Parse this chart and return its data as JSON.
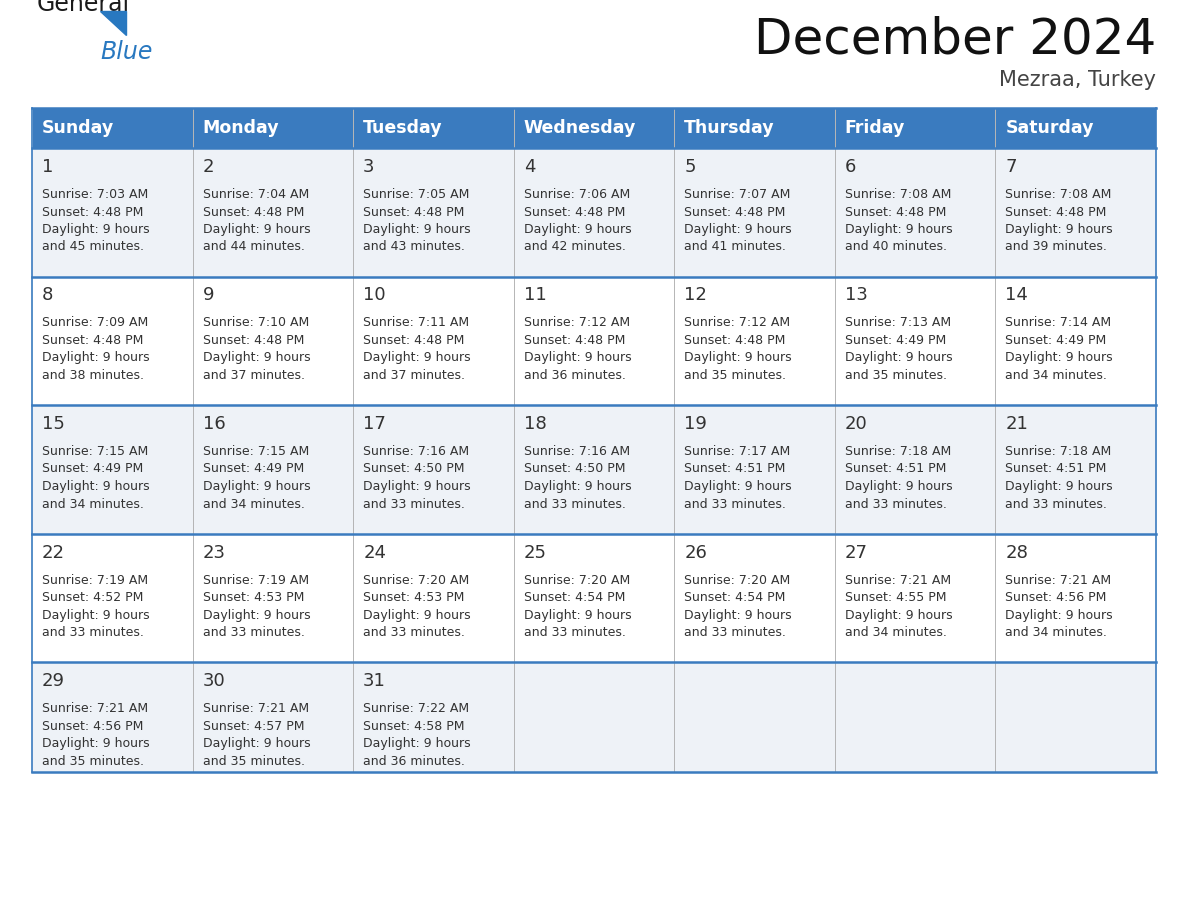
{
  "title": "December 2024",
  "subtitle": "Mezraa, Turkey",
  "days_of_week": [
    "Sunday",
    "Monday",
    "Tuesday",
    "Wednesday",
    "Thursday",
    "Friday",
    "Saturday"
  ],
  "header_bg": "#3a7bbf",
  "header_text_color": "#ffffff",
  "cell_bg_light": "#eef2f7",
  "cell_bg_white": "#ffffff",
  "row_line_color": "#3a7bbf",
  "grid_line_color": "#aaaaaa",
  "text_color": "#333333",
  "logo_general_color": "#1a1a1a",
  "logo_blue_color": "#2878c0",
  "calendar_data": [
    {
      "day": 1,
      "dow": 0,
      "sunrise": "7:03 AM",
      "sunset": "4:48 PM",
      "daylight_h": "9 hours",
      "daylight_m": "45 minutes."
    },
    {
      "day": 2,
      "dow": 1,
      "sunrise": "7:04 AM",
      "sunset": "4:48 PM",
      "daylight_h": "9 hours",
      "daylight_m": "44 minutes."
    },
    {
      "day": 3,
      "dow": 2,
      "sunrise": "7:05 AM",
      "sunset": "4:48 PM",
      "daylight_h": "9 hours",
      "daylight_m": "43 minutes."
    },
    {
      "day": 4,
      "dow": 3,
      "sunrise": "7:06 AM",
      "sunset": "4:48 PM",
      "daylight_h": "9 hours",
      "daylight_m": "42 minutes."
    },
    {
      "day": 5,
      "dow": 4,
      "sunrise": "7:07 AM",
      "sunset": "4:48 PM",
      "daylight_h": "9 hours",
      "daylight_m": "41 minutes."
    },
    {
      "day": 6,
      "dow": 5,
      "sunrise": "7:08 AM",
      "sunset": "4:48 PM",
      "daylight_h": "9 hours",
      "daylight_m": "40 minutes."
    },
    {
      "day": 7,
      "dow": 6,
      "sunrise": "7:08 AM",
      "sunset": "4:48 PM",
      "daylight_h": "9 hours",
      "daylight_m": "39 minutes."
    },
    {
      "day": 8,
      "dow": 0,
      "sunrise": "7:09 AM",
      "sunset": "4:48 PM",
      "daylight_h": "9 hours",
      "daylight_m": "38 minutes."
    },
    {
      "day": 9,
      "dow": 1,
      "sunrise": "7:10 AM",
      "sunset": "4:48 PM",
      "daylight_h": "9 hours",
      "daylight_m": "37 minutes."
    },
    {
      "day": 10,
      "dow": 2,
      "sunrise": "7:11 AM",
      "sunset": "4:48 PM",
      "daylight_h": "9 hours",
      "daylight_m": "37 minutes."
    },
    {
      "day": 11,
      "dow": 3,
      "sunrise": "7:12 AM",
      "sunset": "4:48 PM",
      "daylight_h": "9 hours",
      "daylight_m": "36 minutes."
    },
    {
      "day": 12,
      "dow": 4,
      "sunrise": "7:12 AM",
      "sunset": "4:48 PM",
      "daylight_h": "9 hours",
      "daylight_m": "35 minutes."
    },
    {
      "day": 13,
      "dow": 5,
      "sunrise": "7:13 AM",
      "sunset": "4:49 PM",
      "daylight_h": "9 hours",
      "daylight_m": "35 minutes."
    },
    {
      "day": 14,
      "dow": 6,
      "sunrise": "7:14 AM",
      "sunset": "4:49 PM",
      "daylight_h": "9 hours",
      "daylight_m": "34 minutes."
    },
    {
      "day": 15,
      "dow": 0,
      "sunrise": "7:15 AM",
      "sunset": "4:49 PM",
      "daylight_h": "9 hours",
      "daylight_m": "34 minutes."
    },
    {
      "day": 16,
      "dow": 1,
      "sunrise": "7:15 AM",
      "sunset": "4:49 PM",
      "daylight_h": "9 hours",
      "daylight_m": "34 minutes."
    },
    {
      "day": 17,
      "dow": 2,
      "sunrise": "7:16 AM",
      "sunset": "4:50 PM",
      "daylight_h": "9 hours",
      "daylight_m": "33 minutes."
    },
    {
      "day": 18,
      "dow": 3,
      "sunrise": "7:16 AM",
      "sunset": "4:50 PM",
      "daylight_h": "9 hours",
      "daylight_m": "33 minutes."
    },
    {
      "day": 19,
      "dow": 4,
      "sunrise": "7:17 AM",
      "sunset": "4:51 PM",
      "daylight_h": "9 hours",
      "daylight_m": "33 minutes."
    },
    {
      "day": 20,
      "dow": 5,
      "sunrise": "7:18 AM",
      "sunset": "4:51 PM",
      "daylight_h": "9 hours",
      "daylight_m": "33 minutes."
    },
    {
      "day": 21,
      "dow": 6,
      "sunrise": "7:18 AM",
      "sunset": "4:51 PM",
      "daylight_h": "9 hours",
      "daylight_m": "33 minutes."
    },
    {
      "day": 22,
      "dow": 0,
      "sunrise": "7:19 AM",
      "sunset": "4:52 PM",
      "daylight_h": "9 hours",
      "daylight_m": "33 minutes."
    },
    {
      "day": 23,
      "dow": 1,
      "sunrise": "7:19 AM",
      "sunset": "4:53 PM",
      "daylight_h": "9 hours",
      "daylight_m": "33 minutes."
    },
    {
      "day": 24,
      "dow": 2,
      "sunrise": "7:20 AM",
      "sunset": "4:53 PM",
      "daylight_h": "9 hours",
      "daylight_m": "33 minutes."
    },
    {
      "day": 25,
      "dow": 3,
      "sunrise": "7:20 AM",
      "sunset": "4:54 PM",
      "daylight_h": "9 hours",
      "daylight_m": "33 minutes."
    },
    {
      "day": 26,
      "dow": 4,
      "sunrise": "7:20 AM",
      "sunset": "4:54 PM",
      "daylight_h": "9 hours",
      "daylight_m": "33 minutes."
    },
    {
      "day": 27,
      "dow": 5,
      "sunrise": "7:21 AM",
      "sunset": "4:55 PM",
      "daylight_h": "9 hours",
      "daylight_m": "34 minutes."
    },
    {
      "day": 28,
      "dow": 6,
      "sunrise": "7:21 AM",
      "sunset": "4:56 PM",
      "daylight_h": "9 hours",
      "daylight_m": "34 minutes."
    },
    {
      "day": 29,
      "dow": 0,
      "sunrise": "7:21 AM",
      "sunset": "4:56 PM",
      "daylight_h": "9 hours",
      "daylight_m": "35 minutes."
    },
    {
      "day": 30,
      "dow": 1,
      "sunrise": "7:21 AM",
      "sunset": "4:57 PM",
      "daylight_h": "9 hours",
      "daylight_m": "35 minutes."
    },
    {
      "day": 31,
      "dow": 2,
      "sunrise": "7:22 AM",
      "sunset": "4:58 PM",
      "daylight_h": "9 hours",
      "daylight_m": "36 minutes."
    }
  ]
}
